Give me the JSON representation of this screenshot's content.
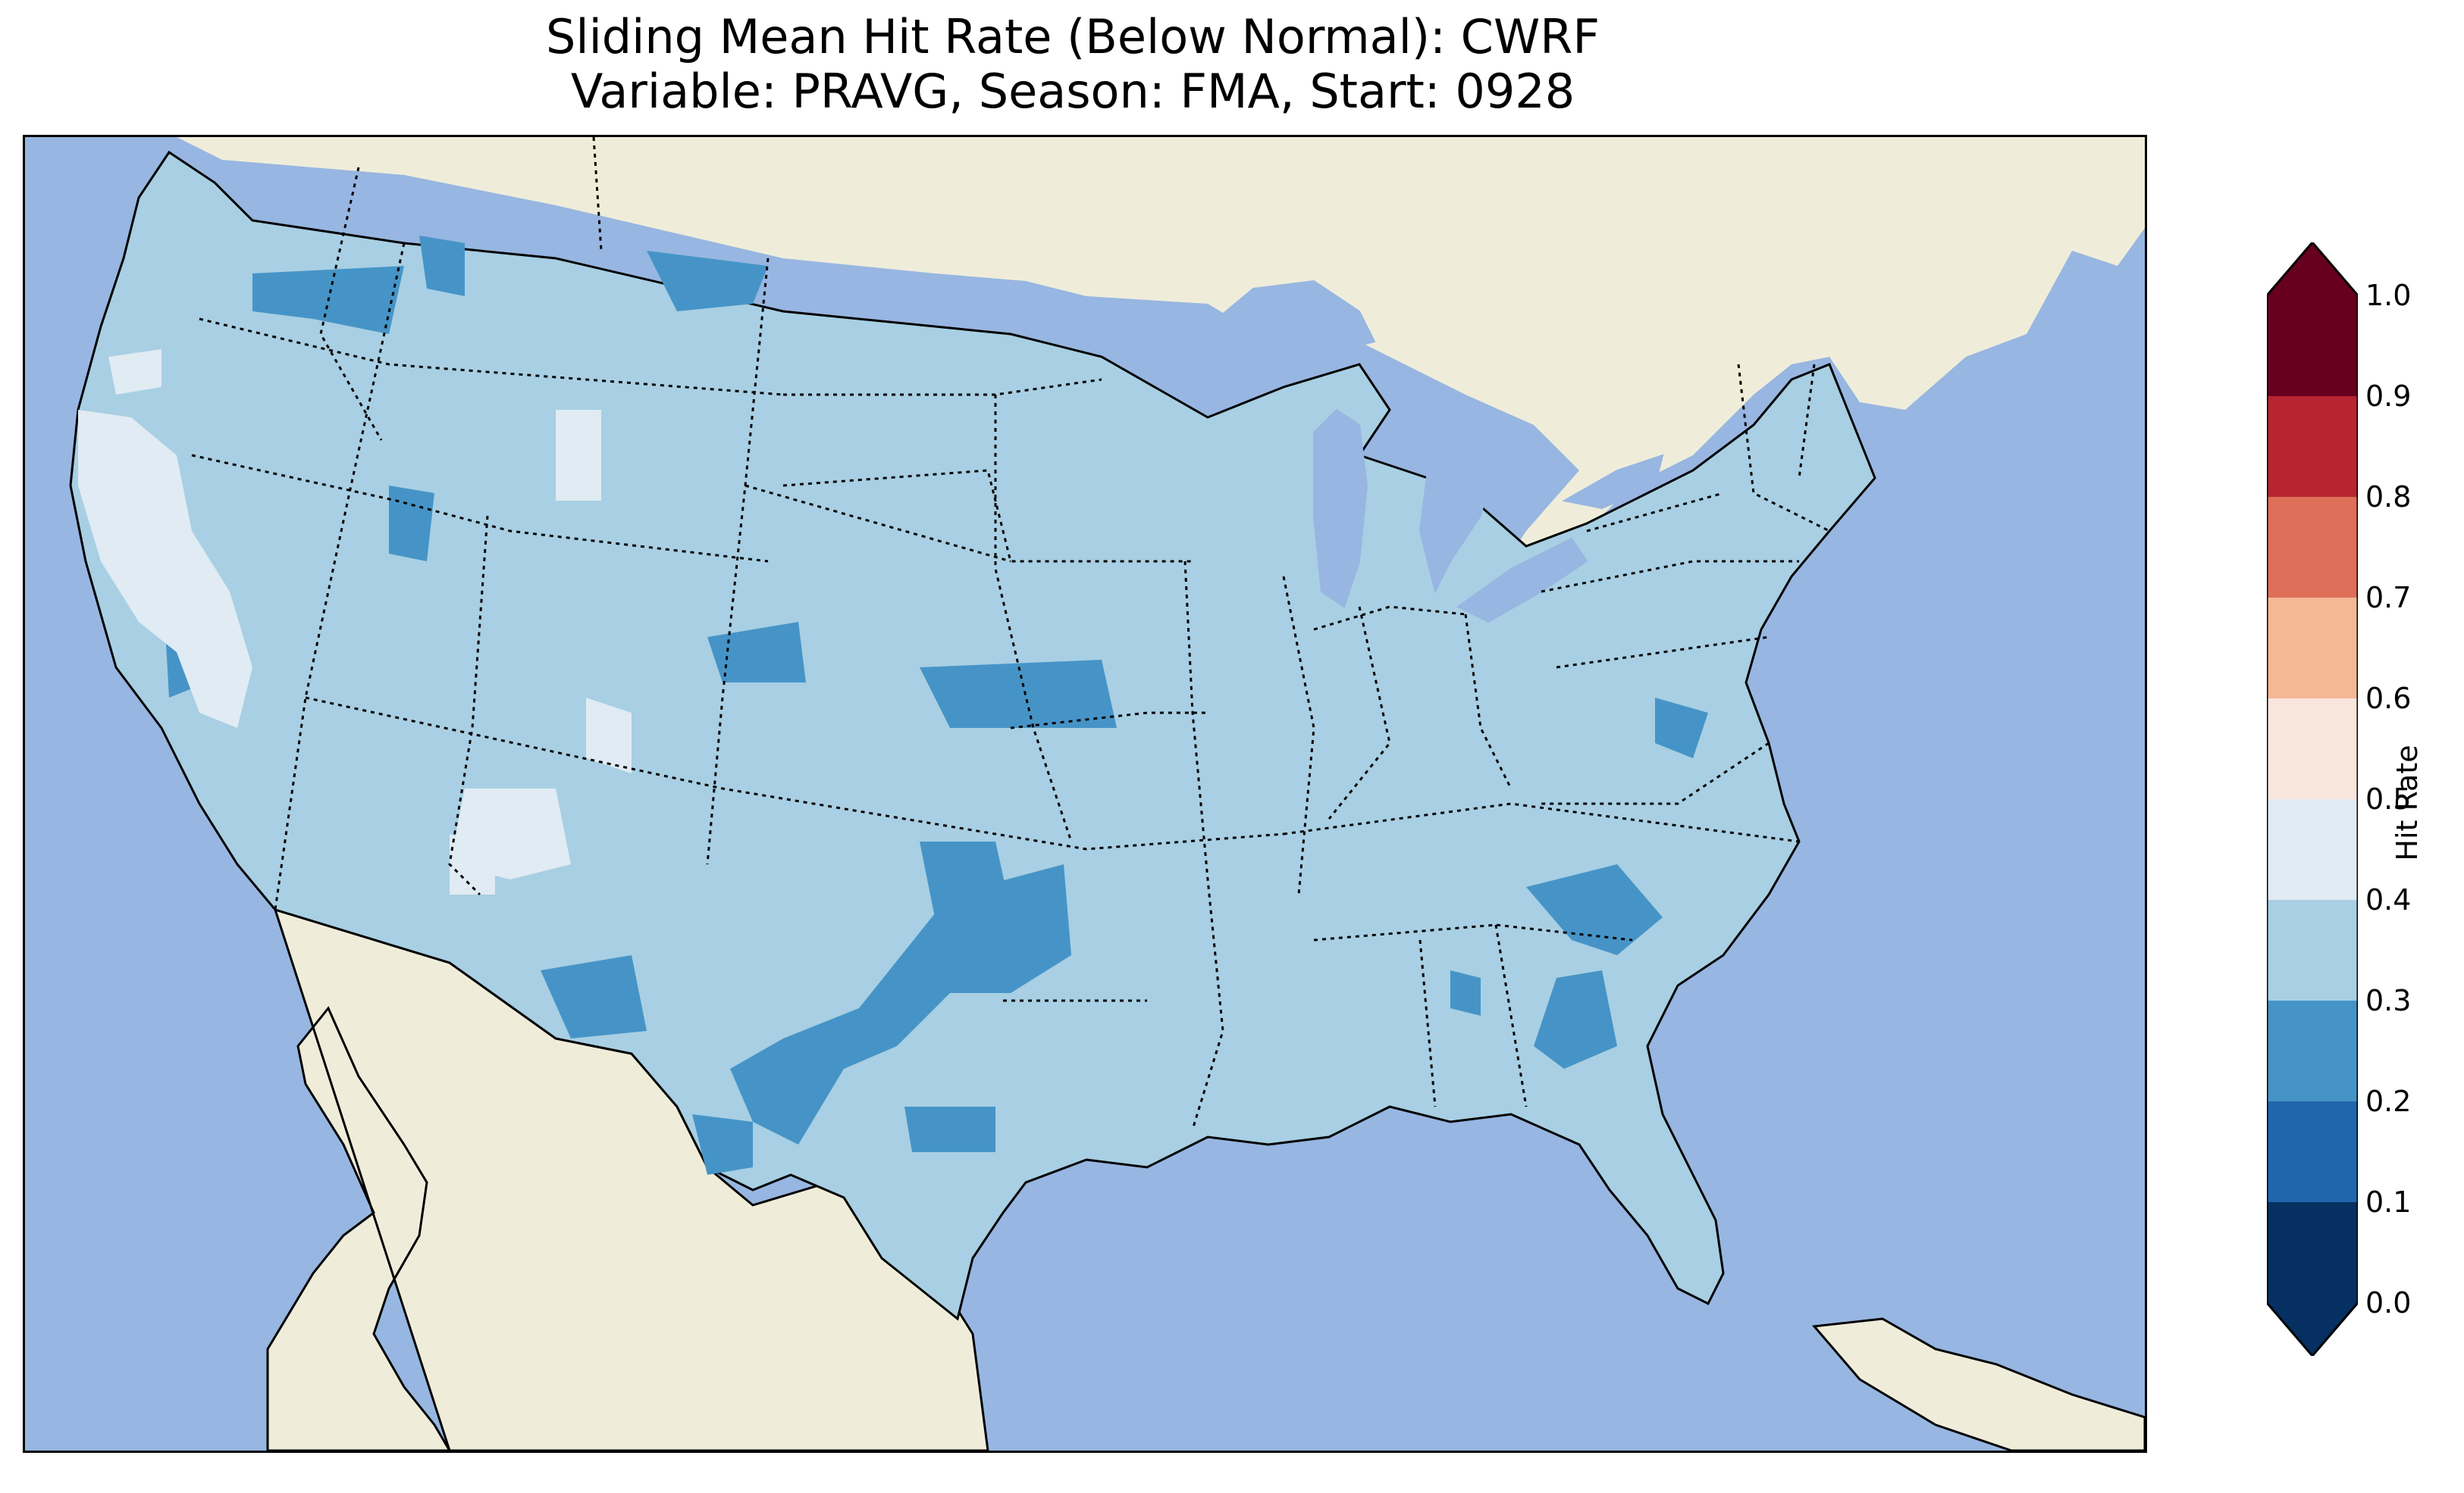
{
  "title": {
    "line1": "Sliding Mean Hit Rate (Below Normal): CWRF",
    "line2": "Variable: PRAVG, Season: FMA, Start: 0928"
  },
  "colors": {
    "ocean": "#97b6e1",
    "land": "#efedda",
    "great_lakes": "#97b6e1",
    "dominant_fill": "#a8cfe3"
  },
  "colorbar": {
    "label": "Hit Rate",
    "extend": "both",
    "ticks": [
      "0.0",
      "0.1",
      "0.2",
      "0.3",
      "0.4",
      "0.5",
      "0.6",
      "0.7",
      "0.8",
      "0.9",
      "1.0"
    ],
    "bins": [
      {
        "range": [
          0.0,
          0.1
        ],
        "color": "#053061"
      },
      {
        "range": [
          0.1,
          0.2
        ],
        "color": "#2166ac"
      },
      {
        "range": [
          0.2,
          0.3
        ],
        "color": "#4694c7"
      },
      {
        "range": [
          0.3,
          0.4
        ],
        "color": "#a8cfe3"
      },
      {
        "range": [
          0.4,
          0.5
        ],
        "color": "#e0ebf3"
      },
      {
        "range": [
          0.5,
          0.6
        ],
        "color": "#f8e5dc"
      },
      {
        "range": [
          0.6,
          0.7
        ],
        "color": "#f5b896"
      },
      {
        "range": [
          0.7,
          0.8
        ],
        "color": "#de6f58"
      },
      {
        "range": [
          0.8,
          0.9
        ],
        "color": "#b82430"
      },
      {
        "range": [
          0.9,
          1.0
        ],
        "color": "#67001f"
      }
    ]
  }
}
